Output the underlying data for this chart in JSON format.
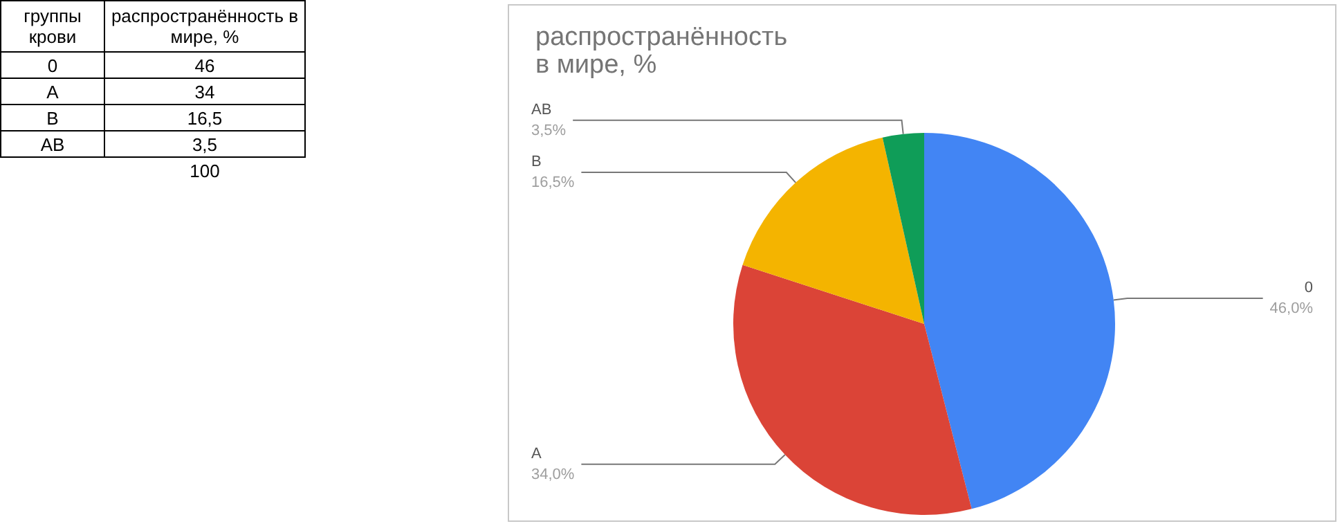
{
  "chart_data": [
    {
      "type": "other",
      "xlabel": "группы крови",
      "ylabel": "распространённость в мире, %",
      "categories": [
        "0",
        "A",
        "B",
        "AB"
      ],
      "value_labels": [
        "46",
        "34",
        "16,5",
        "3,5"
      ],
      "totals": [
        "100"
      ]
    },
    {
      "type": "pie",
      "title": "распространённость в мире, %",
      "categories": [
        "0",
        "A",
        "B",
        "AB"
      ],
      "values": [
        46,
        34,
        16.5,
        3.5
      ],
      "colors": [
        "#4285f4",
        "#db4437",
        "#f4b400",
        "#0f9d58"
      ],
      "value_labels": [
        "46,0%",
        "34,0%",
        "16,5%",
        "3,5%"
      ]
    }
  ]
}
